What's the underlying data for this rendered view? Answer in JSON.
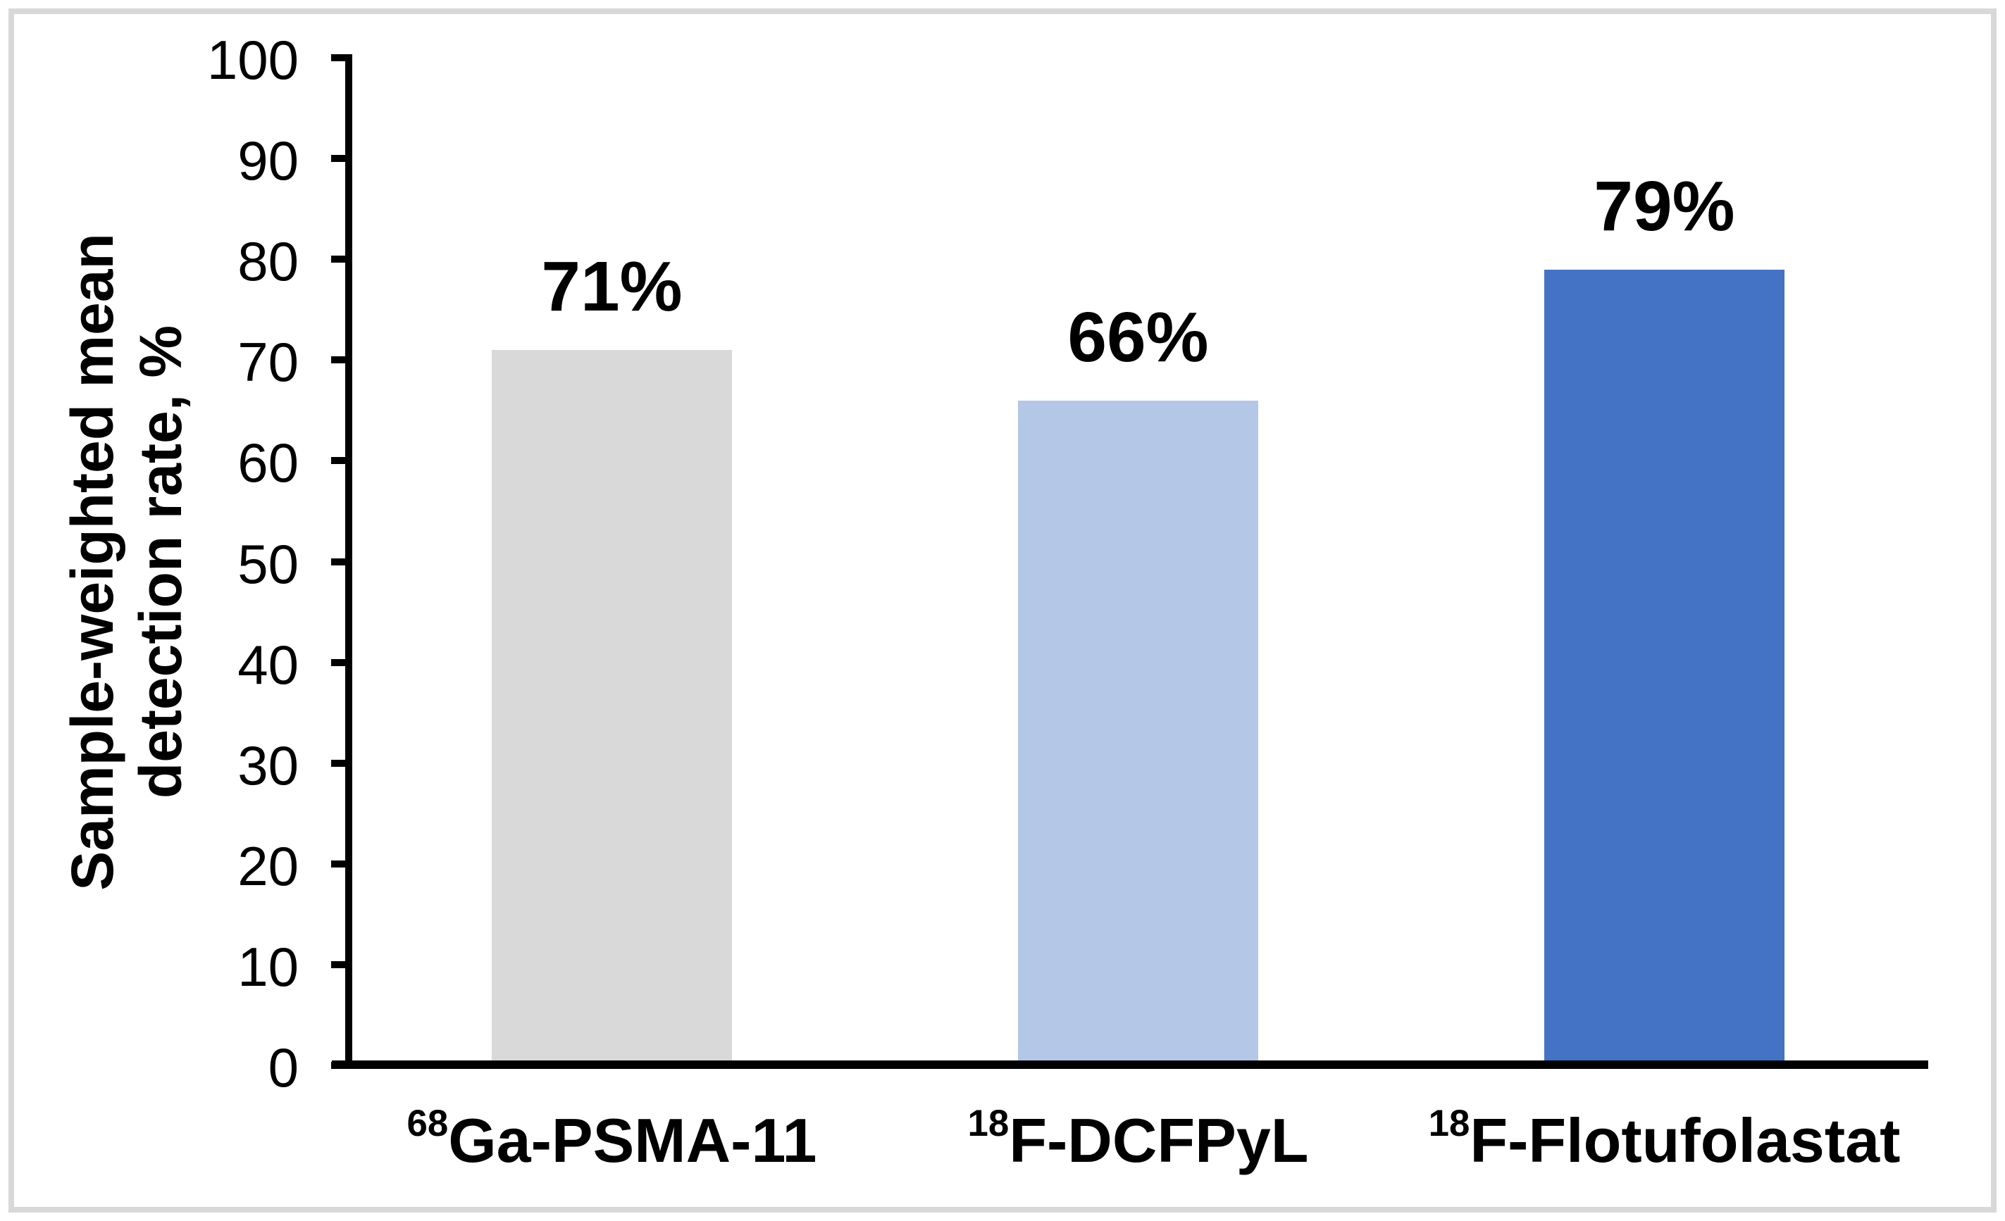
{
  "figure": {
    "background": "#ffffff",
    "border_color": "#d8d8d8",
    "axis_color": "#000000",
    "text_color": "#000000"
  },
  "chart_data": {
    "type": "bar",
    "title": "",
    "ylabel_line1": "Sample-weighted mean",
    "ylabel_line2": "detection rate, %",
    "ylim": [
      0,
      100
    ],
    "y_tick_interval": 10,
    "grid": false,
    "legend": false,
    "y_ticks": [
      "100",
      "90",
      "80",
      "70",
      "60",
      "50",
      "40",
      "30",
      "20",
      "10",
      "0"
    ],
    "categories": [
      "68Ga-PSMA-11",
      "18F-DCFPyL",
      "18F-Flotufolastat"
    ],
    "values": [
      71,
      66,
      79
    ],
    "bars": [
      {
        "isotope": "68",
        "agent": "Ga-PSMA-11",
        "value": 71,
        "value_label": "71%",
        "color": "#d9d9d9"
      },
      {
        "isotope": "18",
        "agent": "F-DCFPyL",
        "value": 66,
        "value_label": "66%",
        "color": "#b4c7e7"
      },
      {
        "isotope": "18",
        "agent": "F-Flotufolastat",
        "value": 79,
        "value_label": "79%",
        "color": "#4472c4"
      }
    ]
  }
}
